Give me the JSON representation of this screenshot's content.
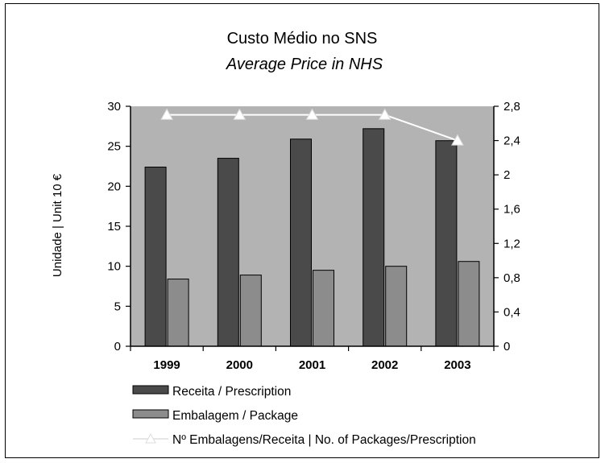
{
  "chart_data": {
    "type": "bar",
    "title": "Custo Médio no SNS",
    "subtitle": "Average Price in NHS",
    "ylabel": "Unidade | Unit 10 €",
    "categories": [
      "1999",
      "2000",
      "2001",
      "2002",
      "2003"
    ],
    "ylim": [
      0,
      30
    ],
    "yticks": [
      "0",
      "5",
      "10",
      "15",
      "20",
      "25",
      "30"
    ],
    "y2lim": [
      0,
      2.8
    ],
    "y2ticks": [
      "0",
      "0,4",
      "0,8",
      "1,2",
      "1,6",
      "2",
      "2,4",
      "2,8"
    ],
    "series": [
      {
        "name": "Receita / Prescription",
        "type": "bar",
        "axis": "left",
        "color": "#4a4a4a",
        "values": [
          22.4,
          23.5,
          25.9,
          27.2,
          25.7
        ]
      },
      {
        "name": "Embalagem / Package",
        "type": "bar",
        "axis": "left",
        "color": "#8c8c8c",
        "values": [
          8.4,
          8.9,
          9.5,
          10.0,
          10.6
        ]
      },
      {
        "name": "Nº Embalagens/Receita | No. of Packages/Prescription",
        "type": "line",
        "axis": "right",
        "color": "#ffffff",
        "values": [
          2.7,
          2.7,
          2.7,
          2.7,
          2.4
        ]
      }
    ],
    "plot_background": "#b3b3b3",
    "legend_position": "bottom"
  }
}
